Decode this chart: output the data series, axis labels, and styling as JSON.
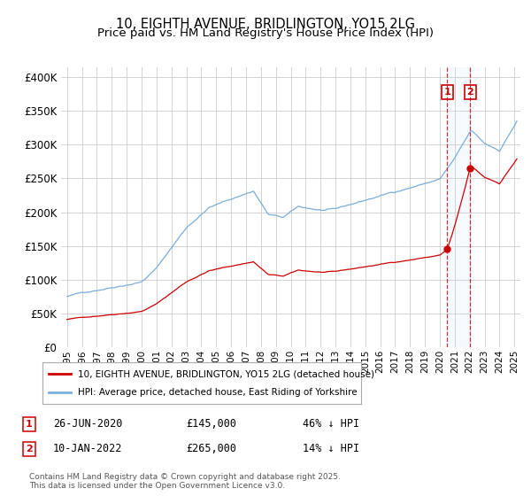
{
  "title": "10, EIGHTH AVENUE, BRIDLINGTON, YO15 2LG",
  "subtitle": "Price paid vs. HM Land Registry's House Price Index (HPI)",
  "title_fontsize": 10.5,
  "ylabel_ticks": [
    "£0",
    "£50K",
    "£100K",
    "£150K",
    "£200K",
    "£250K",
    "£300K",
    "£350K",
    "£400K"
  ],
  "ytick_vals": [
    0,
    50000,
    100000,
    150000,
    200000,
    250000,
    300000,
    350000,
    400000
  ],
  "ylim": [
    0,
    415000
  ],
  "hpi_color": "#7aaedc",
  "price_color": "#cc0000",
  "vline_color": "#cc0000",
  "shade_color": "#ddeeff",
  "legend_label_price": "10, EIGHTH AVENUE, BRIDLINGTON, YO15 2LG (detached house)",
  "legend_label_hpi": "HPI: Average price, detached house, East Riding of Yorkshire",
  "annotation1_label": "1",
  "annotation1_date": "26-JUN-2020",
  "annotation1_price": "£145,000",
  "annotation1_hpi": "46% ↓ HPI",
  "annotation2_label": "2",
  "annotation2_date": "10-JAN-2022",
  "annotation2_price": "£265,000",
  "annotation2_hpi": "14% ↓ HPI",
  "footer": "Contains HM Land Registry data © Crown copyright and database right 2025.\nThis data is licensed under the Open Government Licence v3.0.",
  "background_color": "#ffffff",
  "grid_color": "#cccccc",
  "t1_x": 2020.49,
  "t1_y": 145000,
  "t2_x": 2022.03,
  "t2_y": 265000,
  "xmin": 1995,
  "xmax": 2025
}
